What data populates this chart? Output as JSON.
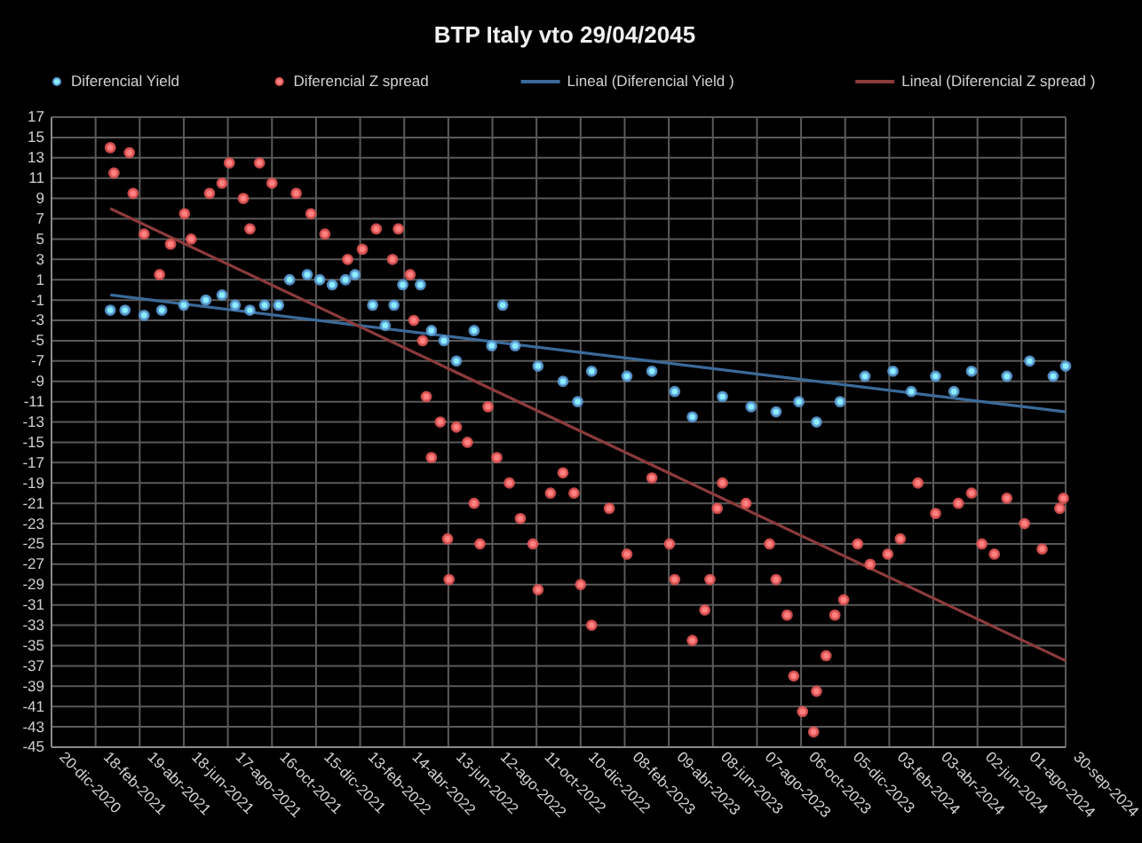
{
  "chart_data": {
    "type": "scatter",
    "title": "BTP Italy vto 29/04/2045",
    "xlim": [
      "2020-12-20",
      "2024-09-30"
    ],
    "xticks": [
      {
        "value": "2020-12-20",
        "label": "20-dic-2020"
      },
      {
        "value": "2021-02-18",
        "label": "18-feb-2021"
      },
      {
        "value": "2021-04-19",
        "label": "19-abr-2021"
      },
      {
        "value": "2021-06-18",
        "label": "18-jun-2021"
      },
      {
        "value": "2021-08-17",
        "label": "17-ago-2021"
      },
      {
        "value": "2021-10-16",
        "label": "16-oct-2021"
      },
      {
        "value": "2021-12-15",
        "label": "15-dic-2021"
      },
      {
        "value": "2022-02-13",
        "label": "13-feb-2022"
      },
      {
        "value": "2022-04-14",
        "label": "14-abr-2022"
      },
      {
        "value": "2022-06-13",
        "label": "13-jun-2022"
      },
      {
        "value": "2022-08-12",
        "label": "12-ago-2022"
      },
      {
        "value": "2022-10-11",
        "label": "11-oct-2022"
      },
      {
        "value": "2022-12-10",
        "label": "10-dic-2022"
      },
      {
        "value": "2023-02-08",
        "label": "08-feb-2023"
      },
      {
        "value": "2023-04-09",
        "label": "09-abr-2023"
      },
      {
        "value": "2023-06-08",
        "label": "08-jun-2023"
      },
      {
        "value": "2023-08-07",
        "label": "07-ago-2023"
      },
      {
        "value": "2023-10-06",
        "label": "06-oct-2023"
      },
      {
        "value": "2023-12-05",
        "label": "05-dic-2023"
      },
      {
        "value": "2024-02-03",
        "label": "03-feb-2024"
      },
      {
        "value": "2024-04-03",
        "label": "03-abr-2024"
      },
      {
        "value": "2024-06-02",
        "label": "02-jun-2024"
      },
      {
        "value": "2024-08-01",
        "label": "01-ago-2024"
      },
      {
        "value": "2024-09-30",
        "label": "30-sep-2024"
      }
    ],
    "ylim": [
      -45,
      17
    ],
    "yticks": [
      -45,
      -43,
      -41,
      -39,
      -37,
      -35,
      -33,
      -31,
      -29,
      -27,
      -25,
      -23,
      -21,
      -19,
      -17,
      -15,
      -13,
      -11,
      -9,
      -7,
      -5,
      -3,
      -1,
      1,
      3,
      5,
      7,
      9,
      11,
      13,
      15,
      17
    ],
    "grid": true,
    "legend": "top",
    "series": [
      {
        "name": "Diferencial Yield",
        "marker": "circle",
        "color": "#5b9bd5",
        "x": [
          "2021-03-10",
          "2021-03-30",
          "2021-04-25",
          "2021-05-19",
          "2021-06-18",
          "2021-07-18",
          "2021-08-09",
          "2021-08-27",
          "2021-09-16",
          "2021-10-06",
          "2021-10-25",
          "2021-11-09",
          "2021-12-03",
          "2021-12-20",
          "2022-01-06",
          "2022-01-24",
          "2022-02-06",
          "2022-03-02",
          "2022-03-19",
          "2022-03-31",
          "2022-04-12",
          "2022-05-06",
          "2022-05-21",
          "2022-06-07",
          "2022-06-24",
          "2022-07-18",
          "2022-08-11",
          "2022-08-26",
          "2022-09-12",
          "2022-10-13",
          "2022-11-16",
          "2022-12-06",
          "2022-12-25",
          "2023-02-11",
          "2023-03-17",
          "2023-04-17",
          "2023-05-11",
          "2023-06-21",
          "2023-07-30",
          "2023-09-02",
          "2023-10-03",
          "2023-10-27",
          "2023-11-28",
          "2024-01-01",
          "2024-02-08",
          "2024-03-04",
          "2024-04-06",
          "2024-05-01",
          "2024-05-25",
          "2024-07-12",
          "2024-08-12",
          "2024-09-13",
          "2024-09-30"
        ],
        "values": [
          -2,
          -2,
          -2.5,
          -2,
          -1.5,
          -1,
          -0.5,
          -1.5,
          -2,
          -1.5,
          -1.5,
          1,
          1.5,
          1,
          0.5,
          1,
          1.5,
          -1.5,
          -3.5,
          -1.5,
          0.5,
          0.5,
          -4,
          -5,
          -7,
          -4,
          -5.5,
          -1.5,
          -5.5,
          -7.5,
          -9,
          -11,
          -8,
          -8.5,
          -8,
          -10,
          -12.5,
          -10.5,
          -11.5,
          -12,
          -11,
          -13,
          -11,
          -8.5,
          -8,
          -10,
          -8.5,
          -10,
          -8,
          -8.5,
          -7,
          -8.5,
          -7.5
        ]
      },
      {
        "name": "Diferencial Z spread",
        "marker": "circle",
        "color": "#e05555",
        "x": [
          "2021-03-10",
          "2021-03-15",
          "2021-04-05",
          "2021-04-10",
          "2021-04-25",
          "2021-05-16",
          "2021-05-31",
          "2021-06-19",
          "2021-06-28",
          "2021-07-23",
          "2021-08-09",
          "2021-08-19",
          "2021-09-07",
          "2021-09-16",
          "2021-09-29",
          "2021-10-16",
          "2021-11-18",
          "2021-12-08",
          "2021-12-27",
          "2022-01-27",
          "2022-02-16",
          "2022-03-07",
          "2022-03-29",
          "2022-04-06",
          "2022-04-22",
          "2022-04-27",
          "2022-05-09",
          "2022-05-14",
          "2022-05-21",
          "2022-06-02",
          "2022-06-12",
          "2022-06-14",
          "2022-06-24",
          "2022-07-09",
          "2022-07-18",
          "2022-07-26",
          "2022-08-06",
          "2022-08-18",
          "2022-09-04",
          "2022-09-19",
          "2022-10-06",
          "2022-10-13",
          "2022-10-30",
          "2022-11-16",
          "2022-12-01",
          "2022-12-10",
          "2022-12-25",
          "2023-01-18",
          "2023-02-11",
          "2023-03-17",
          "2023-04-10",
          "2023-04-17",
          "2023-05-11",
          "2023-05-28",
          "2023-06-04",
          "2023-06-14",
          "2023-06-21",
          "2023-07-23",
          "2023-08-24",
          "2023-09-02",
          "2023-09-17",
          "2023-09-26",
          "2023-10-08",
          "2023-10-23",
          "2023-10-27",
          "2023-11-09",
          "2023-11-21",
          "2023-12-03",
          "2023-12-22",
          "2024-01-08",
          "2024-02-01",
          "2024-02-18",
          "2024-03-13",
          "2024-04-06",
          "2024-05-07",
          "2024-05-25",
          "2024-06-08",
          "2024-06-25",
          "2024-07-12",
          "2024-08-05",
          "2024-08-29",
          "2024-09-22",
          "2024-09-27"
        ],
        "values": [
          14,
          11.5,
          13.5,
          9.5,
          5.5,
          1.5,
          4.5,
          7.5,
          5,
          9.5,
          10.5,
          12.5,
          9,
          6,
          12.5,
          10.5,
          9.5,
          7.5,
          5.5,
          3,
          4,
          6,
          3,
          6,
          1.5,
          -3,
          -5,
          -10.5,
          -16.5,
          -13,
          -24.5,
          -28.5,
          -13.5,
          -15,
          -21,
          -25,
          -11.5,
          -16.5,
          -19,
          -22.5,
          -25,
          -29.5,
          -20,
          -18,
          -20,
          -29,
          -33,
          -21.5,
          -26,
          -18.5,
          -25,
          -28.5,
          -34.5,
          -31.5,
          -28.5,
          -21.5,
          -19,
          -21,
          -25,
          -28.5,
          -32,
          -38,
          -41.5,
          -43.5,
          -39.5,
          -36,
          -32,
          -30.5,
          -25,
          -27,
          -26,
          -24.5,
          -19,
          -22,
          -21,
          -20,
          -25,
          -26,
          -20.5,
          -23,
          -25.5,
          -21.5,
          -20.5
        ]
      },
      {
        "name": "Lineal (Diferencial Yield )",
        "type": "line",
        "marker": "none",
        "color": "#3b6a9a",
        "x": [
          "2021-03-10",
          "2024-09-30"
        ],
        "values": [
          -0.5,
          -12
        ]
      },
      {
        "name": "Lineal (Diferencial Z spread )",
        "type": "line",
        "marker": "none",
        "color": "#8c3b3b",
        "x": [
          "2021-03-10",
          "2024-09-30"
        ],
        "values": [
          8,
          -36.5
        ]
      }
    ]
  }
}
